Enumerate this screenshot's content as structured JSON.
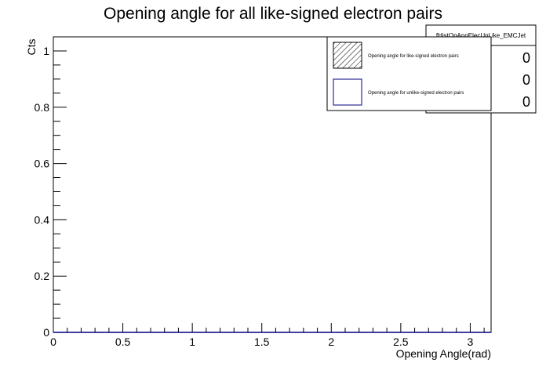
{
  "chart_data": {
    "type": "bar",
    "title": "Opening angle for all like-signed electron pairs",
    "xlabel": "Opening Angle(rad)",
    "ylabel": "Cts",
    "xlim": [
      0,
      3.15
    ],
    "ylim": [
      0,
      1.05
    ],
    "x_ticks": [
      "0",
      "0.5",
      "1",
      "1.5",
      "2",
      "2.5",
      "3"
    ],
    "y_ticks": [
      "0",
      "0.2",
      "0.4",
      "0.6",
      "0.8",
      "1"
    ],
    "series": [
      {
        "name": "Opening angle for like-signed electron pairs",
        "values": [],
        "fill": "hatched"
      },
      {
        "name": "Opening angle for unlike-signed electron pairs",
        "values": [],
        "fill": "none"
      }
    ],
    "stats_box": {
      "name": "fHistOpAngElecUnLike_EMCJet",
      "values": [
        "0",
        "0",
        "0"
      ]
    },
    "grid": false,
    "legend_position": "top-right"
  },
  "colors": {
    "frame": "#000000",
    "unlike_series": "#000080",
    "background": "#ffffff"
  }
}
